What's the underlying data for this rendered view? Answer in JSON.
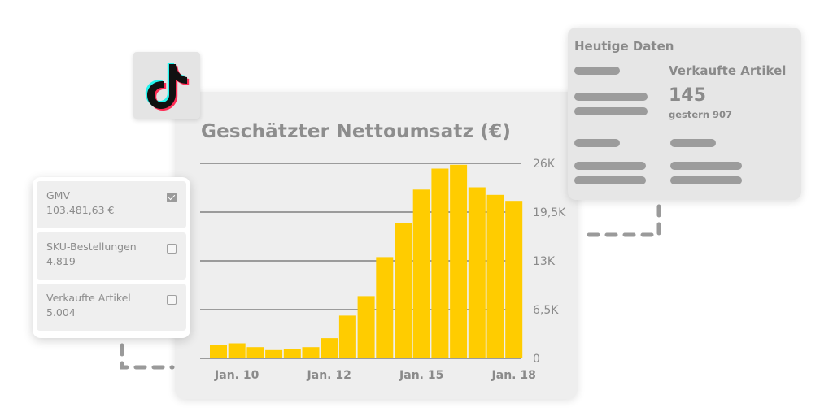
{
  "chart": {
    "title": "Geschätzter Nettoumsatz (€)"
  },
  "chart_data": {
    "type": "bar",
    "title": "Geschätzter Nettoumsatz (€)",
    "x_tick_labels": [
      "Jan. 10",
      "Jan. 12",
      "Jan. 15",
      "Jan. 18"
    ],
    "y_tick_labels": [
      "26K",
      "19,5K",
      "13K",
      "6,5K",
      "0"
    ],
    "ylim": [
      0,
      26000
    ],
    "values": [
      1800,
      2000,
      1500,
      1100,
      1300,
      1500,
      2700,
      5700,
      8300,
      13500,
      18000,
      22500,
      25300,
      25800,
      22800,
      21800,
      21000
    ],
    "color": "#ffcc00",
    "grid": true
  },
  "metrics": {
    "items": [
      {
        "label": "GMV",
        "value": "103.481,63 €",
        "checked": true
      },
      {
        "label": "SKU-Bestellungen",
        "value": "4.819",
        "checked": false
      },
      {
        "label": "Verkaufte Artikel",
        "value": "5.004",
        "checked": false
      }
    ]
  },
  "today": {
    "title": "Heutige Daten",
    "label": "Verkaufte Artikel",
    "value": "145",
    "sub": "gestern 907"
  },
  "logo": {
    "icon": "tiktok-logo-icon"
  },
  "colors": {
    "accent": "#ffcc00",
    "card": "#eeeeee",
    "text": "#8a8a8a"
  }
}
